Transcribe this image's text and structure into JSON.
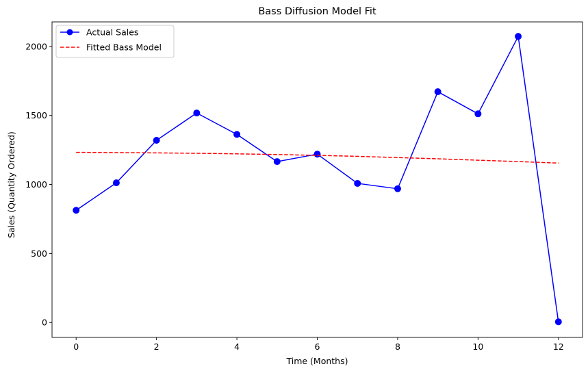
{
  "chart_data": {
    "type": "line",
    "title": "Bass Diffusion Model Fit",
    "xlabel": "Time (Months)",
    "ylabel": "Sales (Quantity Ordered)",
    "xlim": [
      -0.6,
      12.6
    ],
    "ylim": [
      -108,
      2178
    ],
    "xticks": [
      0,
      2,
      4,
      6,
      8,
      10,
      12
    ],
    "yticks": [
      0,
      500,
      1000,
      1500,
      2000
    ],
    "grid": false,
    "legend_position": "top-left",
    "series": [
      {
        "name": "Actual Sales",
        "style": "solid-with-markers",
        "color": "#0000ff",
        "x": [
          0,
          1,
          2,
          3,
          4,
          5,
          6,
          7,
          8,
          9,
          10,
          11,
          12
        ],
        "y": [
          813,
          1012,
          1320,
          1518,
          1363,
          1166,
          1220,
          1008,
          969,
          1672,
          1512,
          2073,
          5
        ]
      },
      {
        "name": "Fitted Bass Model",
        "style": "dashed",
        "color": "#ff0000",
        "x": [
          0,
          1,
          2,
          3,
          4,
          5,
          6,
          7,
          8,
          9,
          10,
          11,
          12
        ],
        "y": [
          1233,
          1231,
          1229,
          1226,
          1222,
          1217,
          1211,
          1204,
          1195,
          1186,
          1176,
          1166,
          1155
        ]
      }
    ]
  }
}
